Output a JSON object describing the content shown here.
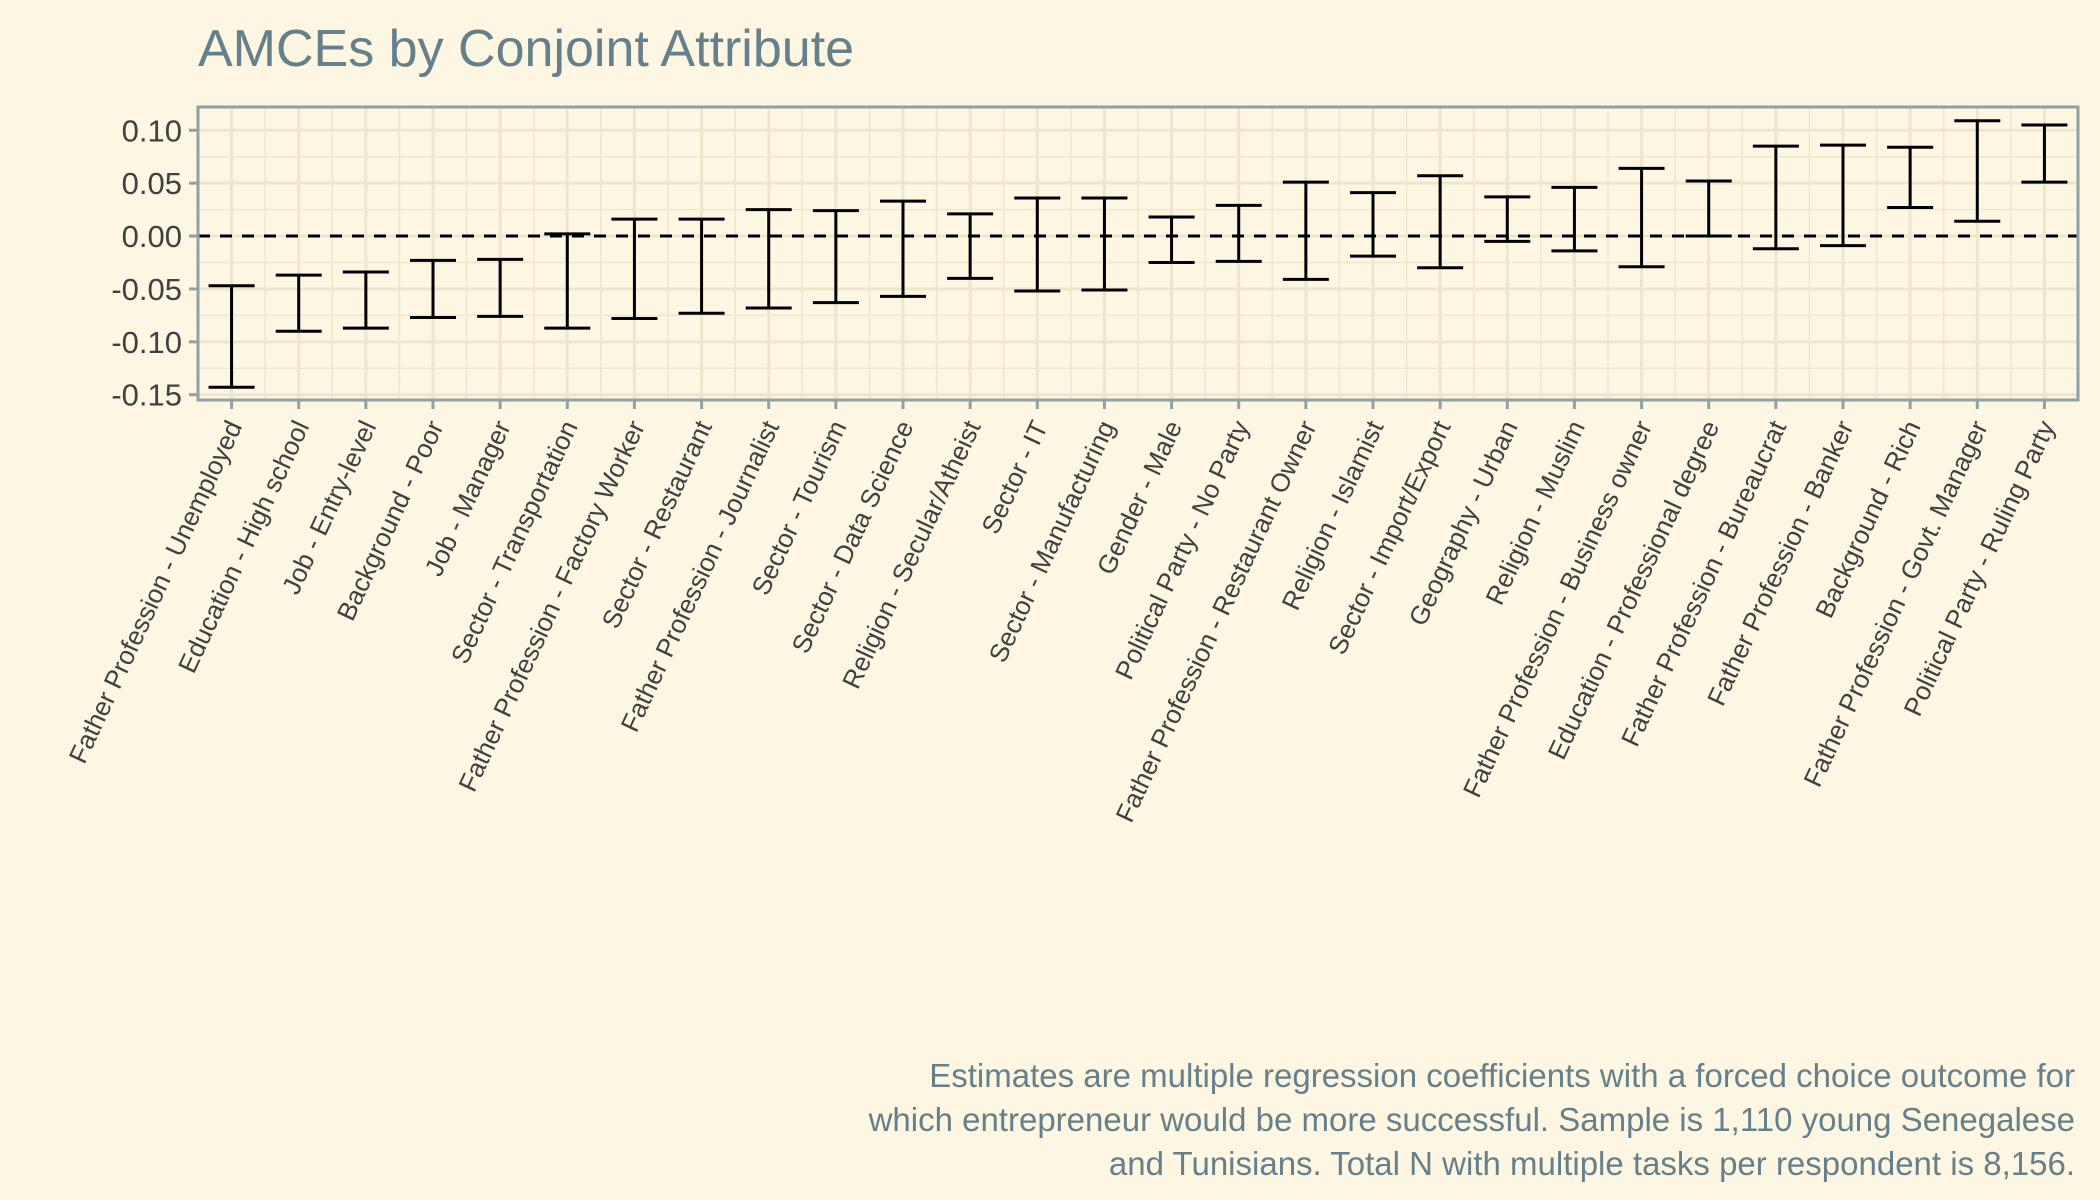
{
  "chart_data": {
    "type": "errorbar",
    "title": "AMCEs by Conjoint Attribute",
    "xlabel": "",
    "ylabel": "",
    "ylim": [
      -0.155,
      0.122
    ],
    "yticks": [
      "0.10",
      "0.05",
      "0.00",
      "-0.05",
      "-0.10",
      "-0.15"
    ],
    "ytick_values": [
      0.1,
      0.05,
      0.0,
      -0.05,
      -0.1,
      -0.15
    ],
    "reference_line": 0.0,
    "grid": true,
    "categories": [
      "Father Profession - Unemployed",
      "Education - High school",
      "Job - Entry-level",
      "Background - Poor",
      "Job - Manager",
      "Sector - Transportation",
      "Father Profession - Factory Worker",
      "Sector - Restaurant",
      "Father Profession - Journalist",
      "Sector - Tourism",
      "Sector - Data Science",
      "Religion - Secular/Atheist",
      "Sector - IT",
      "Sector - Manufacturing",
      "Gender - Male",
      "Political Party - No Party",
      "Father Profession - Restaurant Owner",
      "Religion - Islamist",
      "Sector - Import/Export",
      "Geography - Urban",
      "Religion - Muslim",
      "Father Profession - Business owner",
      "Education - Professional degree",
      "Father Profession - Bureaucrat",
      "Father Profession - Banker",
      "Background - Rich",
      "Father Profession - Govt. Manager",
      "Political Party - Ruling Party"
    ],
    "lower": [
      -0.143,
      -0.09,
      -0.087,
      -0.077,
      -0.076,
      -0.087,
      -0.078,
      -0.073,
      -0.068,
      -0.063,
      -0.057,
      -0.04,
      -0.052,
      -0.051,
      -0.025,
      -0.024,
      -0.041,
      -0.019,
      -0.03,
      -0.005,
      -0.014,
      -0.029,
      0.0,
      -0.012,
      -0.009,
      0.027,
      0.014,
      0.051
    ],
    "upper": [
      -0.047,
      -0.037,
      -0.034,
      -0.023,
      -0.022,
      0.002,
      0.016,
      0.016,
      0.025,
      0.024,
      0.033,
      0.021,
      0.036,
      0.036,
      0.018,
      0.029,
      0.051,
      0.041,
      0.057,
      0.037,
      0.046,
      0.064,
      0.052,
      0.085,
      0.086,
      0.084,
      0.109,
      0.105
    ],
    "caption": [
      "Estimates are multiple regression coefficients with a forced choice outcome for",
      "which entrepreneur would be more successful. Sample is 1,110 young Senegalese",
      "and Tunisians. Total N with multiple tasks per respondent is 8,156."
    ]
  },
  "colors": {
    "background": "#fdf6e3",
    "grid": "#ede6cf",
    "axis": "#8fa1a6",
    "text": "#404040",
    "title": "#65808a",
    "bars": "#000000"
  }
}
